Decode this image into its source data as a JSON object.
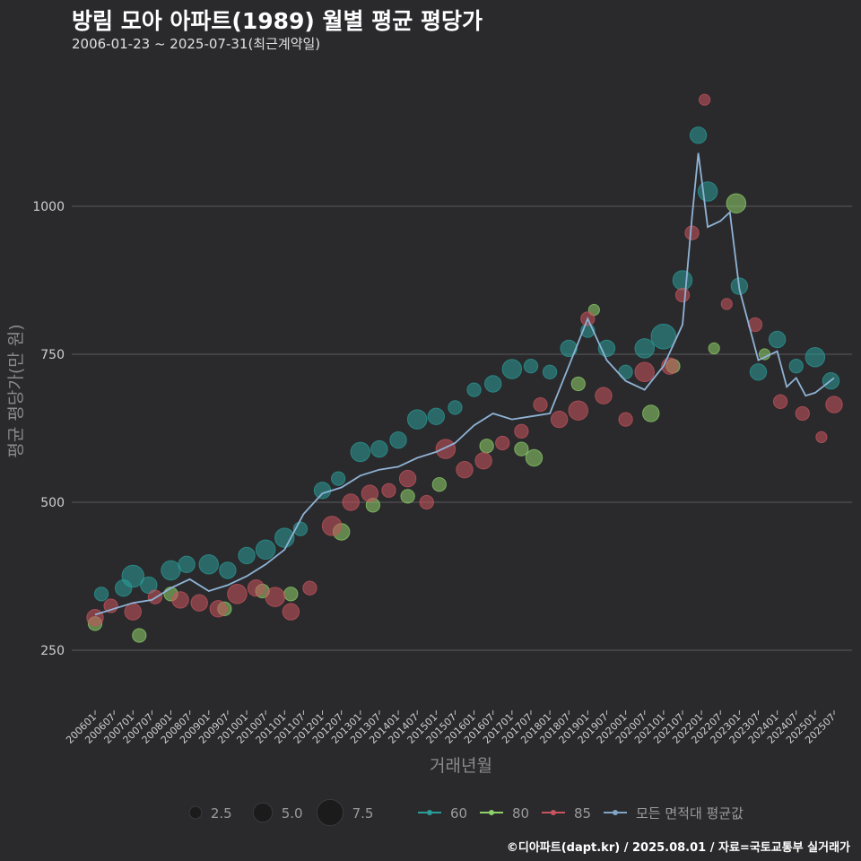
{
  "header": {
    "title": "방림 모아 아파트(1989) 월별 평균 평당가",
    "subtitle": "2006-01-23 ~ 2025-07-31(최근계약일)"
  },
  "caption": "©디아파트(dapt.kr) / 2025.08.01 / 자료=국토교통부 실거래가",
  "chart_data": {
    "type": "scatter",
    "xlabel": "거래년월",
    "ylabel": "평균 평당가(만 원)",
    "ylim": [
      150,
      1200
    ],
    "yticks": [
      250,
      500,
      750,
      1000
    ],
    "x_start": "2006-01",
    "x_end": "2025-07",
    "xtick_labels": [
      "200601",
      "200607",
      "200701",
      "200707",
      "200801",
      "200807",
      "200901",
      "200907",
      "201001",
      "201007",
      "201101",
      "201107",
      "201201",
      "201207",
      "201301",
      "201307",
      "201401",
      "201407",
      "201501",
      "201507",
      "201601",
      "201607",
      "201701",
      "201707",
      "201801",
      "201807",
      "201901",
      "201907",
      "202001",
      "202007",
      "202101",
      "202107",
      "202201",
      "202207",
      "202301",
      "202307",
      "202401",
      "202407",
      "202501",
      "202507"
    ],
    "size_legend": [
      {
        "label": "2.5",
        "value": 2.5
      },
      {
        "label": "5.0",
        "value": 5.0
      },
      {
        "label": "7.5",
        "value": 7.5
      }
    ],
    "series": [
      {
        "name": "60",
        "color": "#2a9d9a"
      },
      {
        "name": "80",
        "color": "#8fd16b"
      },
      {
        "name": "85",
        "color": "#c9545f"
      },
      {
        "name": "모든 면적대 평균값",
        "color": "#7fa6c9"
      }
    ],
    "average_line": [
      [
        "2006-01",
        310
      ],
      [
        "2006-07",
        320
      ],
      [
        "2007-01",
        330
      ],
      [
        "2007-07",
        335
      ],
      [
        "2008-01",
        355
      ],
      [
        "2008-07",
        370
      ],
      [
        "2009-01",
        350
      ],
      [
        "2009-07",
        360
      ],
      [
        "2010-01",
        375
      ],
      [
        "2010-07",
        395
      ],
      [
        "2011-01",
        420
      ],
      [
        "2011-07",
        480
      ],
      [
        "2012-01",
        515
      ],
      [
        "2012-07",
        525
      ],
      [
        "2013-01",
        545
      ],
      [
        "2013-07",
        555
      ],
      [
        "2014-01",
        560
      ],
      [
        "2014-07",
        575
      ],
      [
        "2015-01",
        585
      ],
      [
        "2015-07",
        600
      ],
      [
        "2016-01",
        630
      ],
      [
        "2016-07",
        650
      ],
      [
        "2017-01",
        640
      ],
      [
        "2017-07",
        645
      ],
      [
        "2018-01",
        650
      ],
      [
        "2018-07",
        730
      ],
      [
        "2019-01",
        810
      ],
      [
        "2019-07",
        740
      ],
      [
        "2020-01",
        705
      ],
      [
        "2020-07",
        690
      ],
      [
        "2021-01",
        730
      ],
      [
        "2021-07",
        800
      ],
      [
        "2021-10",
        980
      ],
      [
        "2021-12",
        1090
      ],
      [
        "2022-03",
        965
      ],
      [
        "2022-07",
        975
      ],
      [
        "2022-10",
        990
      ],
      [
        "2023-01",
        860
      ],
      [
        "2023-07",
        740
      ],
      [
        "2024-01",
        755
      ],
      [
        "2024-04",
        695
      ],
      [
        "2024-07",
        710
      ],
      [
        "2024-10",
        680
      ],
      [
        "2025-01",
        685
      ],
      [
        "2025-07",
        710
      ]
    ],
    "points": {
      "60": [
        [
          "2006-03",
          345,
          3
        ],
        [
          "2006-10",
          355,
          4
        ],
        [
          "2007-01",
          375,
          6
        ],
        [
          "2007-06",
          360,
          4
        ],
        [
          "2008-01",
          385,
          5
        ],
        [
          "2008-06",
          395,
          4
        ],
        [
          "2009-01",
          395,
          5
        ],
        [
          "2009-07",
          385,
          4
        ],
        [
          "2010-01",
          410,
          4
        ],
        [
          "2010-07",
          420,
          5
        ],
        [
          "2011-01",
          440,
          5
        ],
        [
          "2011-06",
          455,
          3
        ],
        [
          "2012-01",
          520,
          4
        ],
        [
          "2012-06",
          540,
          3
        ],
        [
          "2013-01",
          585,
          5
        ],
        [
          "2013-07",
          590,
          4
        ],
        [
          "2014-01",
          605,
          4
        ],
        [
          "2014-07",
          640,
          5
        ],
        [
          "2015-01",
          645,
          4
        ],
        [
          "2015-07",
          660,
          3
        ],
        [
          "2016-01",
          690,
          3
        ],
        [
          "2016-07",
          700,
          4
        ],
        [
          "2017-01",
          725,
          5
        ],
        [
          "2017-07",
          730,
          3
        ],
        [
          "2018-01",
          720,
          3
        ],
        [
          "2018-07",
          760,
          4
        ],
        [
          "2019-01",
          790,
          3
        ],
        [
          "2019-07",
          760,
          4
        ],
        [
          "2020-01",
          720,
          3
        ],
        [
          "2020-07",
          760,
          5
        ],
        [
          "2021-01",
          780,
          7
        ],
        [
          "2021-07",
          875,
          5
        ],
        [
          "2021-12",
          1120,
          4
        ],
        [
          "2022-03",
          1025,
          5
        ],
        [
          "2023-01",
          865,
          4
        ],
        [
          "2023-07",
          720,
          4
        ],
        [
          "2024-01",
          775,
          4
        ],
        [
          "2024-07",
          730,
          3
        ],
        [
          "2025-01",
          745,
          5
        ],
        [
          "2025-06",
          705,
          4
        ]
      ],
      "80": [
        [
          "2006-01",
          295,
          3
        ],
        [
          "2007-03",
          275,
          3
        ],
        [
          "2008-01",
          345,
          3
        ],
        [
          "2009-06",
          320,
          3
        ],
        [
          "2010-06",
          350,
          3
        ],
        [
          "2011-03",
          345,
          3
        ],
        [
          "2012-07",
          450,
          4
        ],
        [
          "2013-05",
          495,
          3
        ],
        [
          "2014-04",
          510,
          3
        ],
        [
          "2015-02",
          530,
          3
        ],
        [
          "2016-05",
          595,
          3
        ],
        [
          "2017-04",
          590,
          3
        ],
        [
          "2017-08",
          575,
          4
        ],
        [
          "2018-10",
          700,
          3
        ],
        [
          "2019-03",
          825,
          2
        ],
        [
          "2020-09",
          650,
          4
        ],
        [
          "2021-04",
          730,
          3
        ],
        [
          "2022-05",
          760,
          2
        ],
        [
          "2022-12",
          1005,
          5
        ],
        [
          "2023-09",
          750,
          2
        ]
      ],
      "85": [
        [
          "2006-01",
          305,
          4
        ],
        [
          "2006-06",
          325,
          3
        ],
        [
          "2007-01",
          315,
          4
        ],
        [
          "2007-08",
          340,
          3
        ],
        [
          "2008-04",
          335,
          4
        ],
        [
          "2008-10",
          330,
          4
        ],
        [
          "2009-04",
          320,
          4
        ],
        [
          "2009-10",
          345,
          5
        ],
        [
          "2010-04",
          355,
          4
        ],
        [
          "2010-10",
          340,
          5
        ],
        [
          "2011-03",
          315,
          4
        ],
        [
          "2011-09",
          355,
          3
        ],
        [
          "2012-04",
          460,
          5
        ],
        [
          "2012-10",
          500,
          4
        ],
        [
          "2013-04",
          515,
          4
        ],
        [
          "2013-10",
          520,
          3
        ],
        [
          "2014-04",
          540,
          4
        ],
        [
          "2014-10",
          500,
          3
        ],
        [
          "2015-04",
          590,
          5
        ],
        [
          "2015-10",
          555,
          4
        ],
        [
          "2016-04",
          570,
          4
        ],
        [
          "2016-10",
          600,
          3
        ],
        [
          "2017-04",
          620,
          3
        ],
        [
          "2017-10",
          665,
          3
        ],
        [
          "2018-04",
          640,
          4
        ],
        [
          "2018-10",
          655,
          5
        ],
        [
          "2019-01",
          810,
          3
        ],
        [
          "2019-06",
          680,
          4
        ],
        [
          "2020-01",
          640,
          3
        ],
        [
          "2020-07",
          720,
          5
        ],
        [
          "2021-03",
          730,
          4
        ],
        [
          "2021-07",
          850,
          3
        ],
        [
          "2021-10",
          955,
          3
        ],
        [
          "2022-02",
          1180,
          2
        ],
        [
          "2022-09",
          835,
          2
        ],
        [
          "2023-06",
          800,
          3
        ],
        [
          "2024-02",
          670,
          3
        ],
        [
          "2024-09",
          650,
          3
        ],
        [
          "2025-03",
          610,
          2
        ],
        [
          "2025-07",
          665,
          4
        ]
      ]
    }
  }
}
